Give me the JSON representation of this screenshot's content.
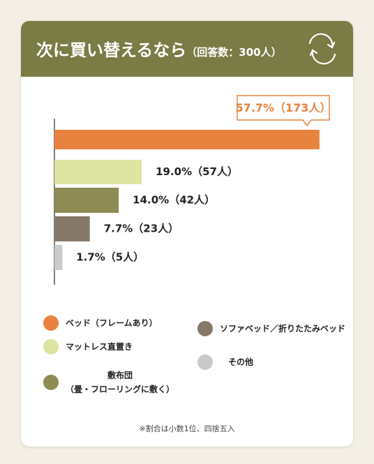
{
  "chart_data": {
    "type": "bar",
    "orientation": "horizontal",
    "title": "次に買い替えるなら",
    "subtitle": "（回答数：300人）",
    "categories": [
      "ベッド（フレームあり）",
      "マットレス直置き",
      "敷布団\n（畳・フローリングに敷く）",
      "ソファベッド／折りたたみベッド",
      "その他"
    ],
    "values": [
      57.7,
      19.0,
      14.0,
      7.7,
      1.7
    ],
    "value_labels": [
      "57.7%（173人）",
      "19.0%（57人）",
      "14.0%（42人）",
      "7.7%（23人）",
      "1.7%（5人）"
    ],
    "colors": [
      "#e8833f",
      "#dde3a0",
      "#8c8c54",
      "#857868",
      "#c9c9c9"
    ],
    "xlim": [
      0,
      60
    ],
    "footnote": "※割合は小数1位、四捨五入"
  }
}
